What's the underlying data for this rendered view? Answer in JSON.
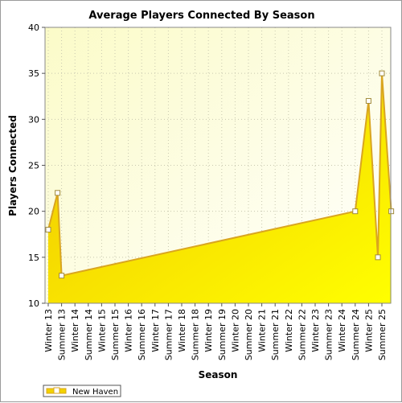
{
  "chart_data": {
    "type": "area",
    "title": "Average Players Connected By Season",
    "xlabel": "Season",
    "ylabel": "Players Connected",
    "ylim": [
      10,
      40
    ],
    "yticks": [
      10,
      15,
      20,
      25,
      30,
      35,
      40
    ],
    "categories": [
      "Winter 13",
      "Summer 13",
      "Winter 14",
      "Summer 14",
      "Winter 15",
      "Summer 15",
      "Winter 16",
      "Summer 16",
      "Winter 17",
      "Summer 17",
      "Winter 18",
      "Summer 18",
      "Winter 19",
      "Summer 19",
      "Winter 20",
      "Summer 20",
      "Winter 21",
      "Summer 21",
      "Winter 22",
      "Summer 22",
      "Winter 23",
      "Summer 23",
      "Winter 24",
      "Summer 24",
      "Winter 25",
      "Summer 25"
    ],
    "series": [
      {
        "name": "New Haven",
        "color": "#f2d200",
        "line_color": "#d9a520",
        "points": [
          {
            "x": "Winter 13",
            "y": 18
          },
          {
            "x": "Winter 13",
            "y": 22
          },
          {
            "x": "Summer 13",
            "y": 13
          },
          {
            "x": "Summer 24",
            "y": 20
          },
          {
            "x": "Winter 25",
            "y": 32
          },
          {
            "x": "Winter 25",
            "y": 15
          },
          {
            "x": "Summer 25",
            "y": 35
          },
          {
            "x": "Summer 25",
            "y": 20
          }
        ]
      }
    ],
    "grid": true,
    "legend_position": "bottom-left",
    "background": "#fdfde0"
  }
}
